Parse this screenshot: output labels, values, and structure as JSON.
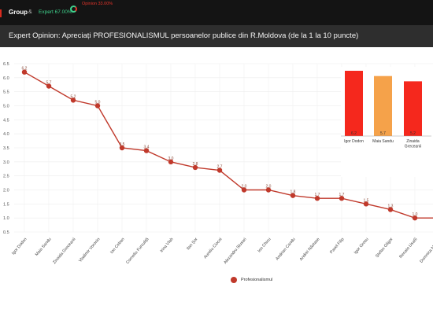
{
  "header": {
    "brand": "Group",
    "separator": "&",
    "expert_label": "Expert 67.00%",
    "opinion_label": "Opinion 33.00%",
    "title": "Expert Opinion: Apreciați PROFESIONALISMUL persoanelor publice din R.Moldova (de la 1 la 10 puncte)"
  },
  "colors": {
    "line": "#c0392b",
    "topbar": "#141414",
    "titlebar": "#2e2e2e"
  },
  "chart_data": [
    {
      "type": "line",
      "categories": [
        "Igor Dodon",
        "Maia Sandu",
        "Zinaida Greceanii",
        "Vladimir Voronin",
        "Ion Ceban",
        "Corneliu Furculiță",
        "Irina Vlah",
        "Ilan Șor",
        "Aureliu Ciocoi",
        "Alexandru Slusari",
        "Ion Chicu",
        "Andrian Candu",
        "Andrei Năstase",
        "Pavel Filip",
        "Igor Grosu",
        "Ștefan Gligor",
        "Renato Usatîi",
        "Dumnica Manole"
      ],
      "series": [
        {
          "name": "Profesionalismul",
          "values": [
            6.2,
            5.7,
            5.2,
            5.0,
            3.5,
            3.4,
            3.0,
            2.8,
            2.7,
            2.0,
            2.0,
            1.8,
            1.7,
            1.7,
            1.5,
            1.3,
            1.0,
            1.0
          ],
          "labels": [
            "6.2",
            "5.7",
            "5.2",
            "5.0",
            "3.5",
            "3.4",
            "3.0",
            "2.8",
            "2.7",
            "2.0",
            "2.0",
            "1.8",
            "1.7",
            "1.7",
            "1.5",
            "1.3",
            "1.0",
            ""
          ]
        }
      ],
      "ylim": [
        0.5,
        6.5
      ],
      "yticks": [
        "0.5",
        "1.0",
        "1.5",
        "2.0",
        "2.5",
        "3.0",
        "3.5",
        "4.0",
        "4.5",
        "5.0",
        "5.5",
        "6.0",
        "6.5"
      ],
      "grid": true,
      "legend": "bottom"
    },
    {
      "type": "bar",
      "categories": [
        "Igor Dodon",
        "Maia Sandu",
        "Zinaida Greceanii"
      ],
      "values": [
        6.2,
        5.7,
        5.2
      ],
      "labels": [
        "6.2",
        "5.7",
        "5.2"
      ],
      "colors": [
        "#f5281d",
        "#f5a24a",
        "#f5281d"
      ]
    }
  ]
}
